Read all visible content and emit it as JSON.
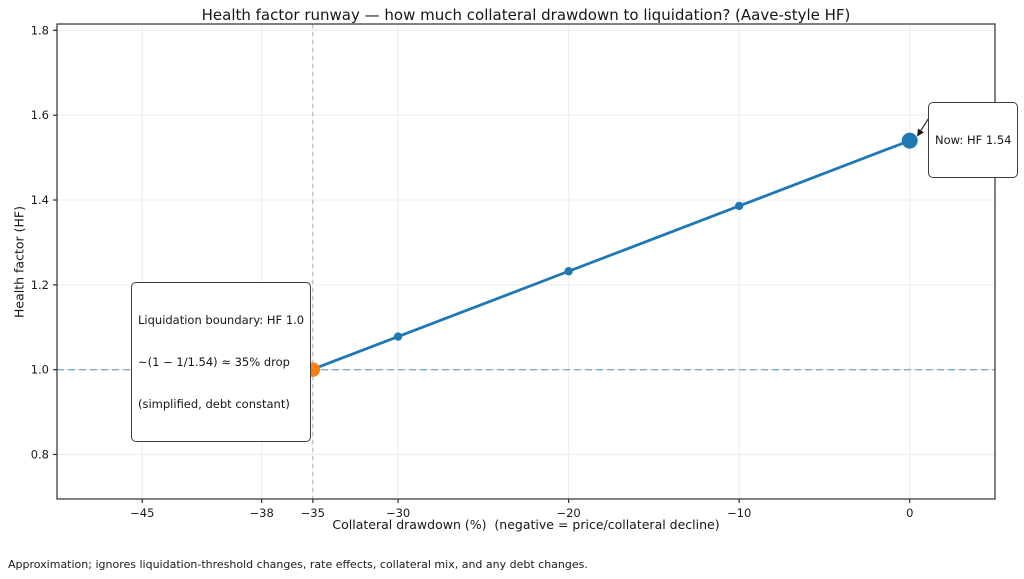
{
  "footer": "Approximation; ignores liquidation-threshold changes, rate effects, collateral mix, and any debt changes.",
  "chart_data": {
    "type": "line",
    "title": "Health factor runway — how much collateral drawdown to liquidation? (Aave-style HF)",
    "xlabel": "Collateral drawdown (%)  (negative = price/collateral decline)",
    "ylabel": "Health factor (HF)",
    "x": [
      -45,
      -38,
      -35,
      -30,
      -20,
      -10,
      0
    ],
    "y": [
      0.847,
      0.955,
      1.001,
      1.078,
      1.232,
      1.386,
      1.54
    ],
    "xlim": [
      -50,
      5
    ],
    "ylim": [
      0.695,
      1.815
    ],
    "xtick_values": [
      -45,
      -38,
      -35,
      -30,
      -20,
      -10,
      0
    ],
    "xtick_labels": [
      "−45",
      "−38",
      "−35",
      "−30",
      "−20",
      "−10",
      "0"
    ],
    "ytick_values": [
      0.8,
      1.0,
      1.2,
      1.4,
      1.6,
      1.8
    ],
    "ytick_labels": [
      "0.8",
      "1.0",
      "1.2",
      "1.4",
      "1.6",
      "1.8"
    ],
    "grid": true,
    "legend": "none",
    "line_color": "#1f77b4",
    "marker_color": "#1f77b4",
    "grid_color": "#ececec",
    "spine_color": "#2e2e2e",
    "refline_h": 1.0,
    "refline_v": -35,
    "refline_color": "rgba(31,119,180,0.5)",
    "highlight_point": {
      "x": -35,
      "y": 1.0,
      "color": "#ff7f0e"
    },
    "now_point": {
      "x": 0,
      "y": 1.54
    },
    "annotations": [
      {
        "lines": [
          "Liquidation boundary: HF 1.0",
          "~(1 − 1/1.54) ≈ 35% drop",
          "(simplified, debt constant)"
        ],
        "target": {
          "x": -35,
          "y": 1.0
        }
      },
      {
        "lines": [
          "Now: HF 1.54"
        ],
        "target": {
          "x": 0,
          "y": 1.54
        }
      }
    ]
  }
}
